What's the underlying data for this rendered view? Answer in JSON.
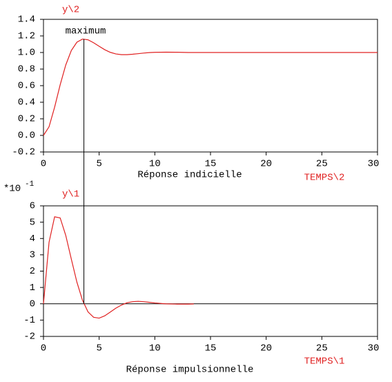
{
  "chart_data": [
    {
      "type": "line",
      "ylabel": "y\\2",
      "xlabel": "Réponse indicielle",
      "xvar": "TEMPS\\2",
      "annotation": {
        "text": "maximum",
        "x": 3.63,
        "y": 1.163
      },
      "series": [
        {
          "color": "#e02020",
          "x": [
            0,
            0.5,
            1,
            1.5,
            2,
            2.5,
            3,
            3.5,
            4,
            4.5,
            5,
            5.5,
            6,
            6.5,
            7,
            7.5,
            8,
            8.5,
            9,
            9.5,
            10,
            11,
            12,
            13,
            15,
            20,
            25,
            30
          ],
          "values": [
            0,
            0.104,
            0.34,
            0.611,
            0.849,
            1.024,
            1.124,
            1.162,
            1.153,
            1.118,
            1.075,
            1.034,
            1.002,
            0.983,
            0.974,
            0.974,
            0.979,
            0.986,
            0.993,
            0.999,
            1.002,
            1.004,
            1.003,
            1.0,
            1.0,
            1.0,
            1.0,
            1.0
          ]
        }
      ],
      "xlim": [
        0,
        30
      ],
      "xticks": [
        0,
        5,
        10,
        15,
        20,
        25,
        30
      ],
      "ylim": [
        -0.2,
        1.4
      ],
      "yticks": [
        -0.2,
        {
          "value": 0,
          "label": "0.0"
        },
        0.2,
        0.4,
        0.6,
        0.8,
        {
          "value": 1,
          "label": "1.0"
        },
        1.2,
        1.4
      ]
    },
    {
      "type": "line",
      "ylabel": "y\\1",
      "xlabel": "Réponse impulsionnelle",
      "xvar": "TEMPS\\1",
      "y_scale_label": "*10",
      "y_scale_exponent": "-1",
      "zero_line": true,
      "series": [
        {
          "color": "#e02020",
          "x": [
            0,
            0.5,
            1,
            1.5,
            2,
            2.5,
            3,
            3.5,
            4,
            4.5,
            5,
            5.5,
            6,
            6.5,
            7,
            7.5,
            8,
            8.5,
            9,
            9.5,
            10,
            11,
            12,
            13,
            13.5
          ],
          "values": [
            0,
            3.77,
            5.33,
            5.26,
            4.19,
            2.74,
            1.33,
            0.22,
            -0.5,
            -0.83,
            -0.88,
            -0.74,
            -0.51,
            -0.27,
            -0.08,
            0.06,
            0.13,
            0.15,
            0.13,
            0.09,
            0.05,
            -0.005,
            -0.02,
            -0.02,
            -0.01
          ]
        }
      ],
      "xlim": [
        0,
        30
      ],
      "xticks": [
        0,
        5,
        10,
        15,
        20,
        25,
        30
      ],
      "ylim": [
        -2,
        6
      ],
      "yticks": [
        -2,
        -1,
        0,
        1,
        2,
        3,
        4,
        5,
        6
      ]
    }
  ]
}
